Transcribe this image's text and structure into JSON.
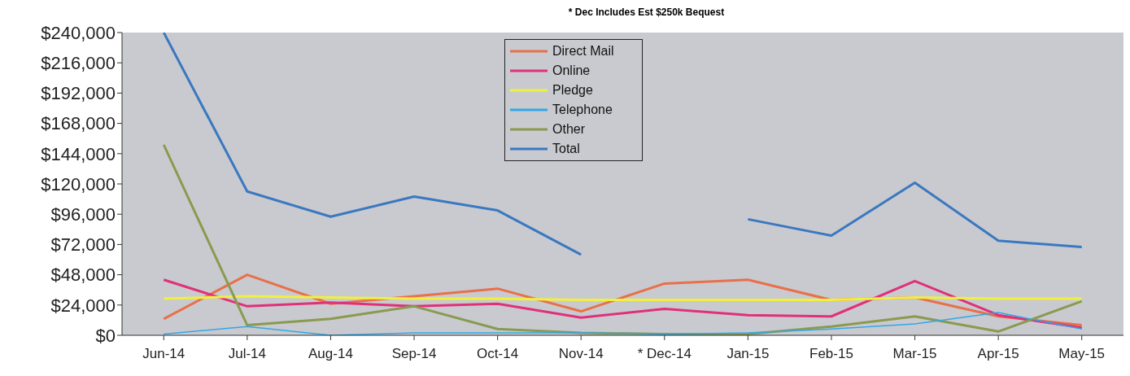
{
  "chart_data": {
    "type": "line",
    "subtitle": "* Dec Includes Est $250k Bequest",
    "categories": [
      "Jun-14",
      "Jul-14",
      "Aug-14",
      "Sep-14",
      "Oct-14",
      "Nov-14",
      "* Dec-14",
      "Jan-15",
      "Feb-15",
      "Mar-15",
      "Apr-15",
      "May-15"
    ],
    "series": [
      {
        "name": "Direct Mail",
        "color": "#e8704a",
        "values": [
          13000,
          48000,
          25000,
          31000,
          37000,
          19000,
          41000,
          44000,
          28000,
          30000,
          15000,
          8000
        ]
      },
      {
        "name": "Online",
        "color": "#e0307a",
        "values": [
          44000,
          23000,
          26000,
          23000,
          25000,
          14000,
          21000,
          16000,
          15000,
          43000,
          16000,
          6000
        ]
      },
      {
        "name": "Pledge",
        "color": "#f0f040",
        "values": [
          29000,
          31000,
          30000,
          29000,
          29000,
          28000,
          28000,
          28000,
          28000,
          30000,
          29000,
          29000
        ]
      },
      {
        "name": "Telephone",
        "color": "#30a8e8",
        "values": [
          1000,
          7000,
          0,
          2000,
          2000,
          2000,
          1000,
          2000,
          5000,
          9000,
          18000,
          5000
        ]
      },
      {
        "name": "Other",
        "color": "#8a9a50",
        "values": [
          151000,
          8000,
          13000,
          23000,
          5000,
          2000,
          1000,
          1000,
          7000,
          15000,
          3000,
          27000
        ]
      },
      {
        "name": "Total",
        "color": "#3a78c0",
        "values": [
          240000,
          114000,
          94000,
          110000,
          99000,
          64000,
          null,
          92000,
          79000,
          121000,
          75000,
          70000
        ]
      }
    ],
    "ylim": [
      0,
      240000
    ],
    "yticks": [
      {
        "value": 0,
        "label": "$0"
      },
      {
        "value": 24000,
        "label": "$24,000"
      },
      {
        "value": 48000,
        "label": "$48,000"
      },
      {
        "value": 72000,
        "label": "$72,000"
      },
      {
        "value": 96000,
        "label": "$96,000"
      },
      {
        "value": 120000,
        "label": "$120,000"
      },
      {
        "value": 144000,
        "label": "$144,000"
      },
      {
        "value": 168000,
        "label": "$168,000"
      },
      {
        "value": 192000,
        "label": "$192,000"
      },
      {
        "value": 216000,
        "label": "$216,000"
      },
      {
        "value": 240000,
        "label": "$240,000"
      }
    ],
    "grid": false,
    "legend": "top",
    "marker": "none",
    "line_style": "solid"
  }
}
